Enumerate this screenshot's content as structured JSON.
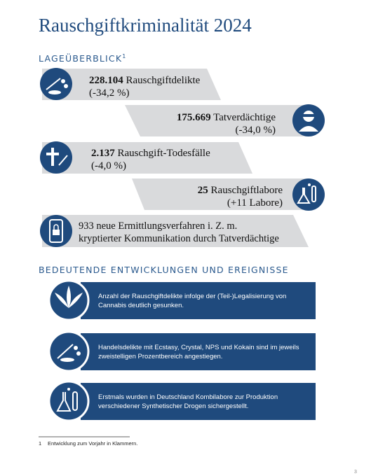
{
  "title": "Rauschgiftkriminalität 2024",
  "overview": {
    "heading": "LAGEÜBERBLICK",
    "footnote_marker": "1",
    "items": [
      {
        "number": "228.104",
        "label": "Rauschgiftdelikte",
        "change": "(-34,2 %)"
      },
      {
        "number": "175.669",
        "label": "Tatverdächtige",
        "change": "(-34,0 %)"
      },
      {
        "number": "2.137",
        "label": "Rauschgift-Todesfälle",
        "change": "(-4,0 %)"
      },
      {
        "number": "25",
        "label": "Rauschgiftlabore",
        "change": "(+11 Labore)"
      },
      {
        "lines": [
          "933 neue Ermittlungsverfahren i. Z. m.",
          "kryptierter Kommunikation durch Tatverdächtige"
        ]
      }
    ]
  },
  "developments": {
    "heading": "BEDEUTENDE ENTWICKLUNGEN UND EREIGNISSE",
    "items": [
      {
        "lines": [
          "Anzahl der Rauschgiftdelikte infolge der (Teil-)Legalisierung von",
          "Cannabis deutlich gesunken."
        ]
      },
      {
        "lines": [
          "Handelsdelikte mit Ecstasy, Crystal, NPS und Kokain sind im jeweils",
          "zweistelligen Prozentbereich angestiegen."
        ]
      },
      {
        "lines": [
          "Erstmals wurden in Deutschland Kombilabore zur Produktion",
          "verschiedener Synthetischer Drogen sichergestellt."
        ]
      }
    ]
  },
  "footnote": {
    "marker": "1",
    "text": "Entwicklung zum Vorjahr in Klammern."
  },
  "page_number": "3"
}
